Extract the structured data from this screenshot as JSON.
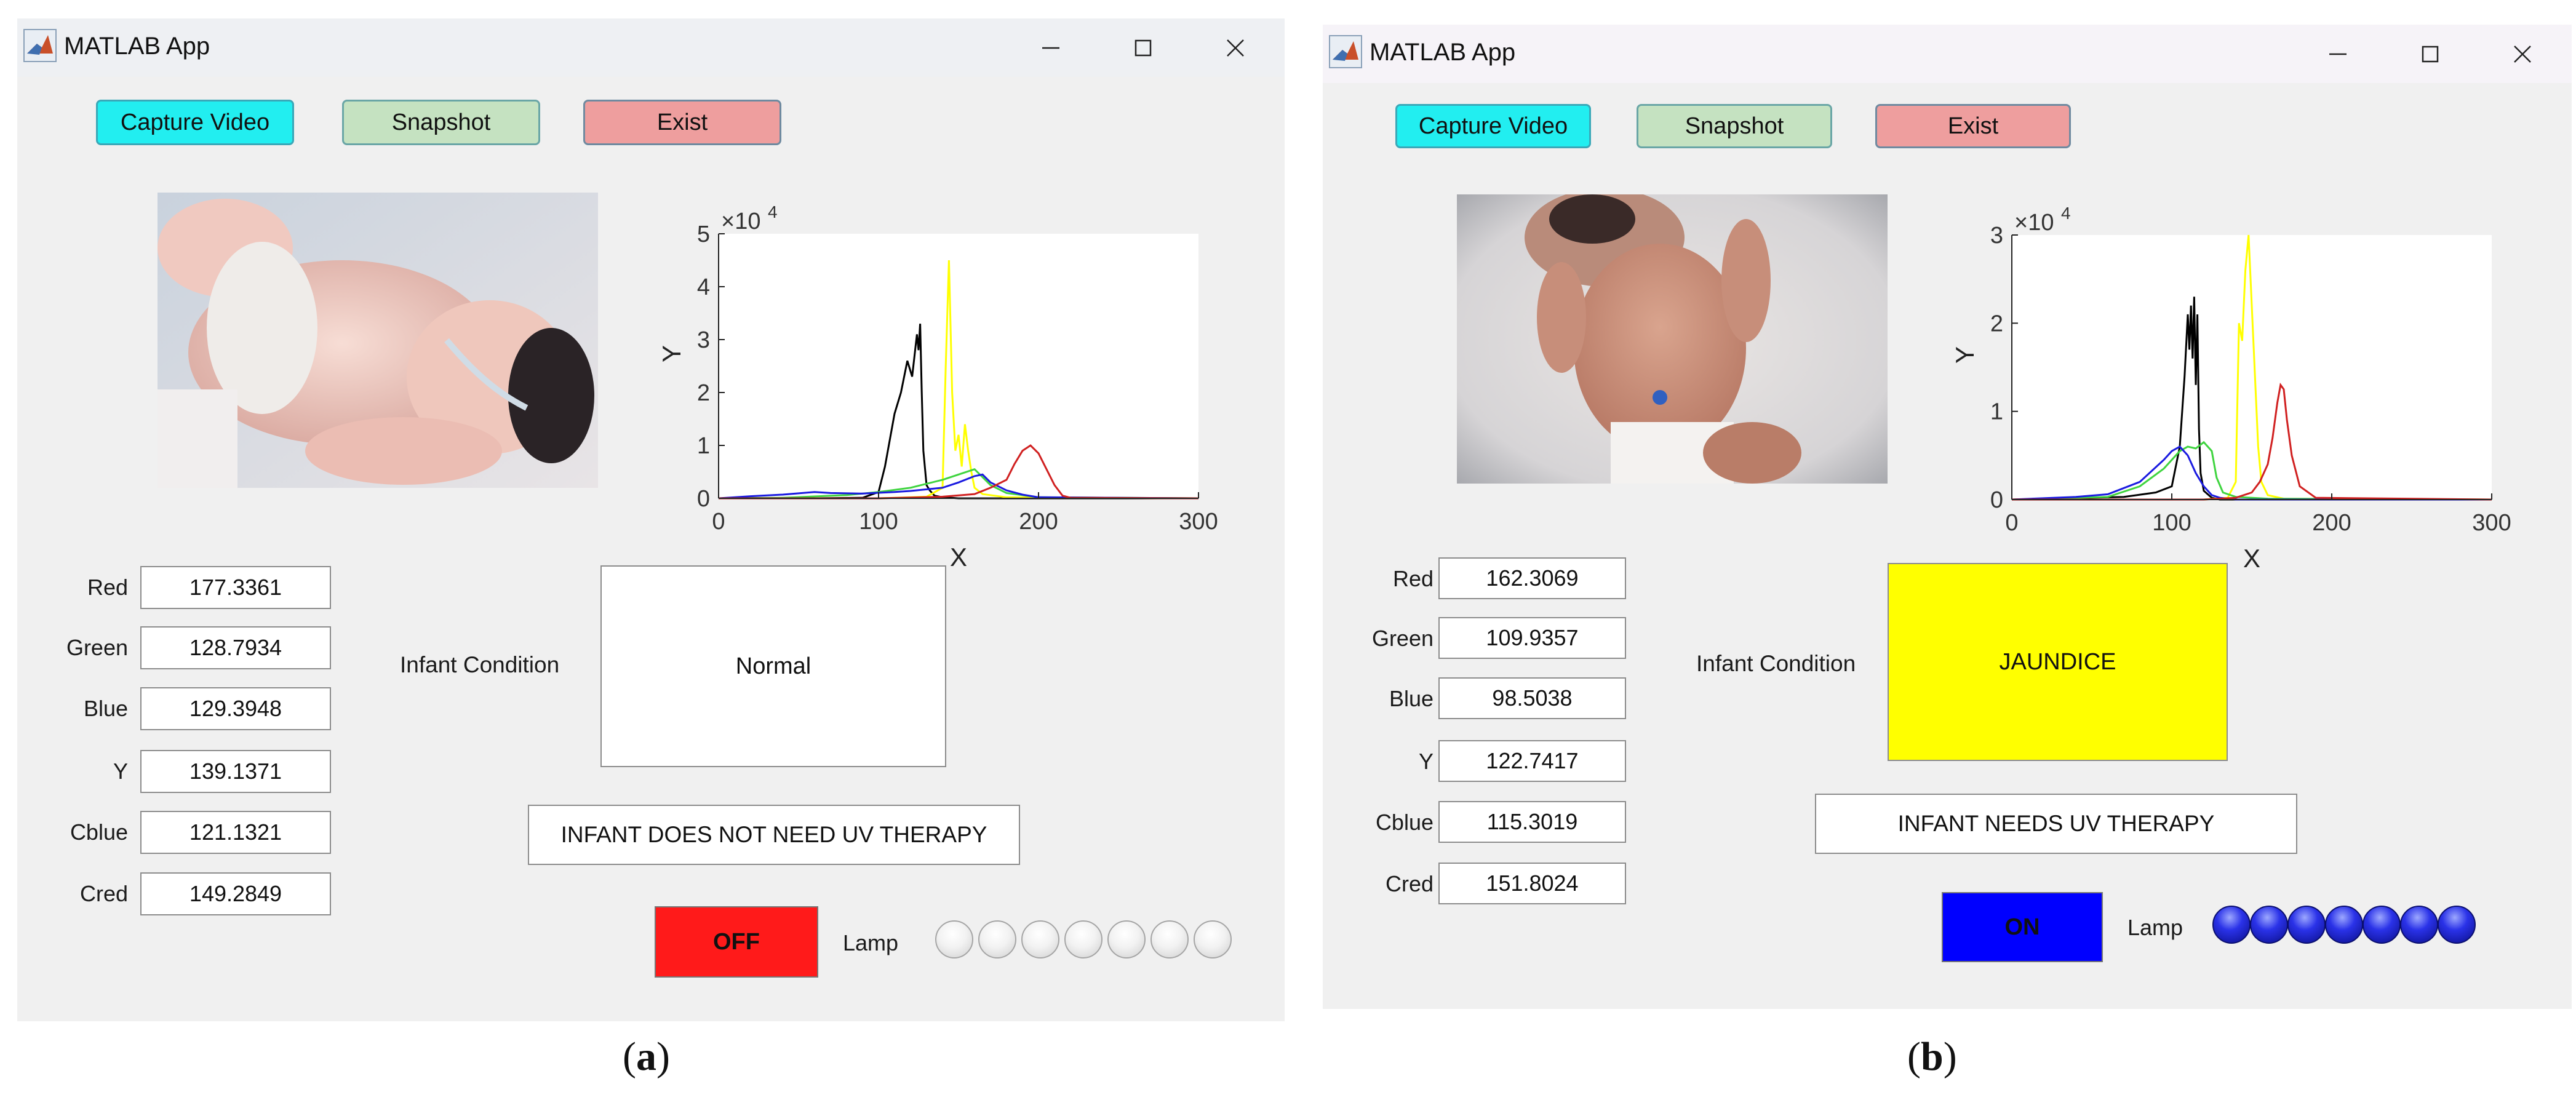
{
  "panels": [
    {
      "caption_prefix": "(",
      "caption_letter": "a",
      "caption_suffix": ")",
      "window_title": "MATLAB App",
      "buttons": {
        "capture": "Capture Video",
        "snapshot": "Snapshot",
        "exit": "Exist"
      },
      "photo_icon": "infant-photo",
      "fields": [
        {
          "label": "Red",
          "value": "177.3361"
        },
        {
          "label": "Green",
          "value": "128.7934"
        },
        {
          "label": "Blue",
          "value": "129.3948"
        },
        {
          "label": "Y",
          "value": "139.1371"
        },
        {
          "label": "Cblue",
          "value": "121.1321"
        },
        {
          "label": "Cred",
          "value": "149.2849"
        }
      ],
      "condition_label": "Infant Condition",
      "condition": "Normal",
      "condition_color": "#ffffff",
      "therapy": "INFANT DOES NOT NEED UV THERAPY",
      "switch_label": "OFF",
      "switch_color": "#ff1a1a",
      "switch_text_color": "#111111",
      "lamp_label": "Lamp",
      "lamps_on": false,
      "lamp_count": 7
    },
    {
      "caption_prefix": "(",
      "caption_letter": "b",
      "caption_suffix": ")",
      "window_title": "MATLAB App",
      "buttons": {
        "capture": "Capture Video",
        "snapshot": "Snapshot",
        "exit": "Exist"
      },
      "photo_icon": "infant-photo",
      "fields": [
        {
          "label": "Red",
          "value": "162.3069"
        },
        {
          "label": "Green",
          "value": "109.9357"
        },
        {
          "label": "Blue",
          "value": "98.5038"
        },
        {
          "label": "Y",
          "value": "122.7417"
        },
        {
          "label": "Cblue",
          "value": "115.3019"
        },
        {
          "label": "Cred",
          "value": "151.8024"
        }
      ],
      "condition_label": "Infant Condition",
      "condition": "JAUNDICE",
      "condition_color": "#ffff00",
      "therapy": "INFANT NEEDS UV THERAPY",
      "switch_label": "ON",
      "switch_color": "#0000ff",
      "switch_text_color": "#111111",
      "lamp_label": "Lamp",
      "lamps_on": true,
      "lamp_count": 7
    }
  ],
  "chart_data": [
    {
      "type": "line",
      "xlabel": "X",
      "ylabel": "Y",
      "y_exponent_label": "×10",
      "y_exponent": "4",
      "xlim": [
        0,
        300
      ],
      "ylim": [
        0,
        50000
      ],
      "xticks": [
        "0",
        "100",
        "200",
        "300"
      ],
      "yticks": [
        "0",
        "1",
        "2",
        "3",
        "4",
        "5"
      ],
      "series": [
        {
          "color": "#000000",
          "x": [
            0,
            60,
            90,
            100,
            104,
            107,
            110,
            114,
            118,
            121,
            124,
            125,
            126,
            127,
            128,
            130,
            132,
            135,
            140,
            150,
            200,
            300
          ],
          "values": [
            0,
            0,
            100,
            1200,
            6000,
            11000,
            16000,
            20000,
            26000,
            23000,
            31000,
            28000,
            33000,
            20000,
            9000,
            2500,
            1500,
            500,
            200,
            0,
            0,
            0
          ]
        },
        {
          "color": "#ffff00",
          "x": [
            0,
            100,
            130,
            140,
            142,
            144,
            146,
            148,
            150,
            152,
            154,
            156,
            158,
            160,
            165,
            180,
            300
          ],
          "values": [
            0,
            0,
            300,
            2000,
            25000,
            45000,
            20000,
            9000,
            12000,
            6000,
            14000,
            9000,
            5000,
            2000,
            800,
            200,
            0
          ]
        },
        {
          "color": "#3fd43f",
          "x": [
            0,
            40,
            80,
            100,
            120,
            140,
            150,
            160,
            165,
            170,
            180,
            200,
            300
          ],
          "values": [
            0,
            100,
            600,
            1200,
            2000,
            3500,
            4500,
            5500,
            4000,
            2500,
            1000,
            200,
            0
          ]
        },
        {
          "color": "#1a1ae0",
          "x": [
            0,
            20,
            40,
            60,
            70,
            90,
            110,
            120,
            140,
            150,
            160,
            165,
            170,
            180,
            190,
            200,
            300
          ],
          "values": [
            0,
            400,
            700,
            1200,
            1000,
            900,
            1200,
            1400,
            2000,
            3000,
            4200,
            4500,
            3000,
            1500,
            700,
            200,
            0
          ]
        },
        {
          "color": "#d02020",
          "x": [
            0,
            100,
            140,
            160,
            170,
            180,
            185,
            190,
            195,
            200,
            205,
            210,
            215,
            220,
            300
          ],
          "values": [
            0,
            0,
            300,
            800,
            2000,
            3500,
            6500,
            9000,
            10000,
            8500,
            5500,
            2500,
            500,
            100,
            0
          ]
        }
      ]
    },
    {
      "type": "line",
      "xlabel": "X",
      "ylabel": "Y",
      "y_exponent_label": "×10",
      "y_exponent": "4",
      "xlim": [
        0,
        300
      ],
      "ylim": [
        0,
        30000
      ],
      "xticks": [
        "0",
        "100",
        "200",
        "300"
      ],
      "yticks": [
        "0",
        "1",
        "2",
        "3"
      ],
      "series": [
        {
          "color": "#000000",
          "x": [
            0,
            70,
            90,
            100,
            105,
            108,
            110,
            111,
            112,
            113,
            114,
            115,
            116,
            117,
            118,
            120,
            125,
            130,
            300
          ],
          "values": [
            0,
            300,
            800,
            1500,
            6000,
            14000,
            21000,
            17000,
            22000,
            16000,
            23000,
            13000,
            21000,
            8000,
            3000,
            1000,
            200,
            0,
            0
          ]
        },
        {
          "color": "#ffff00",
          "x": [
            0,
            120,
            135,
            140,
            142,
            144,
            146,
            148,
            150,
            152,
            154,
            156,
            160,
            170,
            300
          ],
          "values": [
            0,
            0,
            200,
            2000,
            20000,
            18000,
            26000,
            30000,
            22000,
            14000,
            6000,
            2000,
            500,
            100,
            0
          ]
        },
        {
          "color": "#3fd43f",
          "x": [
            0,
            60,
            80,
            95,
            105,
            110,
            115,
            120,
            125,
            128,
            132,
            140,
            160,
            300
          ],
          "values": [
            0,
            300,
            1500,
            3500,
            5500,
            6000,
            5800,
            6500,
            5500,
            2500,
            800,
            300,
            100,
            0
          ]
        },
        {
          "color": "#1a1ae0",
          "x": [
            0,
            40,
            60,
            80,
            95,
            100,
            105,
            110,
            115,
            120,
            125,
            130,
            140,
            300
          ],
          "values": [
            0,
            300,
            600,
            2000,
            4500,
            5500,
            6000,
            5000,
            3000,
            1500,
            500,
            200,
            0,
            0
          ]
        },
        {
          "color": "#d02020",
          "x": [
            0,
            120,
            140,
            150,
            155,
            160,
            163,
            166,
            168,
            170,
            172,
            175,
            180,
            190,
            300
          ],
          "values": [
            0,
            0,
            200,
            800,
            2000,
            4000,
            7000,
            11000,
            13000,
            12500,
            9000,
            5000,
            1500,
            200,
            0
          ]
        }
      ]
    }
  ]
}
